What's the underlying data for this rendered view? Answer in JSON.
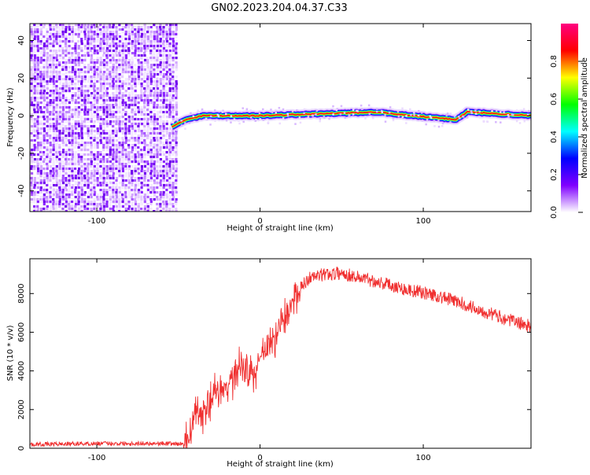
{
  "title": "GN02.2023.204.04.37.C33",
  "chart_data": [
    {
      "type": "heatmap",
      "xlabel": "Height of straight line (km)",
      "ylabel": "Frequency (Hz)",
      "xlim": [
        -141,
        166
      ],
      "ylim": [
        -51,
        49
      ],
      "x_ticks": [
        -100,
        0,
        100
      ],
      "y_ticks": [
        -40,
        -20,
        0,
        20,
        40
      ],
      "grid": false,
      "noise_region_x": [
        -141,
        -52
      ],
      "signal_track": [
        {
          "x": -54,
          "y": -6
        },
        {
          "x": -50,
          "y": -4
        },
        {
          "x": -45,
          "y": -2
        },
        {
          "x": -40,
          "y": -1
        },
        {
          "x": -35,
          "y": 0
        },
        {
          "x": 0,
          "y": 0
        },
        {
          "x": 75,
          "y": 2
        },
        {
          "x": 80,
          "y": 1
        },
        {
          "x": 120,
          "y": -2
        },
        {
          "x": 127,
          "y": 2
        },
        {
          "x": 166,
          "y": 0
        }
      ],
      "colorbar": {
        "label": "Normalized spectral amplitude",
        "range": [
          0,
          1
        ],
        "ticks": [
          "0.0",
          "0.2",
          "0.4",
          "0.6",
          "0.8"
        ],
        "colors": [
          "#ffffff",
          "#8000ff",
          "#0000ff",
          "#00ffff",
          "#00ff00",
          "#ffff00",
          "#ff0000",
          "#ff0080"
        ]
      }
    },
    {
      "type": "line",
      "xlabel": "Height of straight line (km)",
      "ylabel": "SNR (10 * v/v)",
      "xlim": [
        -141,
        166
      ],
      "ylim": [
        0,
        9800
      ],
      "x_ticks": [
        -100,
        0,
        100
      ],
      "y_ticks": [
        0,
        2000,
        4000,
        6000,
        8000
      ],
      "grid": false,
      "color": "#f03030",
      "points": [
        {
          "x": -141,
          "y": 200
        },
        {
          "x": -100,
          "y": 250
        },
        {
          "x": -60,
          "y": 250
        },
        {
          "x": -47,
          "y": 220
        },
        {
          "x": -42,
          "y": 800
        },
        {
          "x": -40,
          "y": 2000
        },
        {
          "x": -35,
          "y": 1500
        },
        {
          "x": -30,
          "y": 2600
        },
        {
          "x": -25,
          "y": 2900
        },
        {
          "x": -20,
          "y": 3200
        },
        {
          "x": -15,
          "y": 4000
        },
        {
          "x": -10,
          "y": 4300
        },
        {
          "x": -5,
          "y": 3800
        },
        {
          "x": 0,
          "y": 4600
        },
        {
          "x": 5,
          "y": 5200
        },
        {
          "x": 10,
          "y": 5900
        },
        {
          "x": 15,
          "y": 6700
        },
        {
          "x": 20,
          "y": 7600
        },
        {
          "x": 25,
          "y": 8300
        },
        {
          "x": 30,
          "y": 8800
        },
        {
          "x": 40,
          "y": 9000
        },
        {
          "x": 50,
          "y": 9050
        },
        {
          "x": 60,
          "y": 8850
        },
        {
          "x": 70,
          "y": 8650
        },
        {
          "x": 80,
          "y": 8450
        },
        {
          "x": 90,
          "y": 8200
        },
        {
          "x": 100,
          "y": 8050
        },
        {
          "x": 110,
          "y": 7850
        },
        {
          "x": 120,
          "y": 7600
        },
        {
          "x": 130,
          "y": 7300
        },
        {
          "x": 140,
          "y": 7000
        },
        {
          "x": 150,
          "y": 6700
        },
        {
          "x": 160,
          "y": 6450
        },
        {
          "x": 166,
          "y": 6300
        }
      ]
    }
  ]
}
